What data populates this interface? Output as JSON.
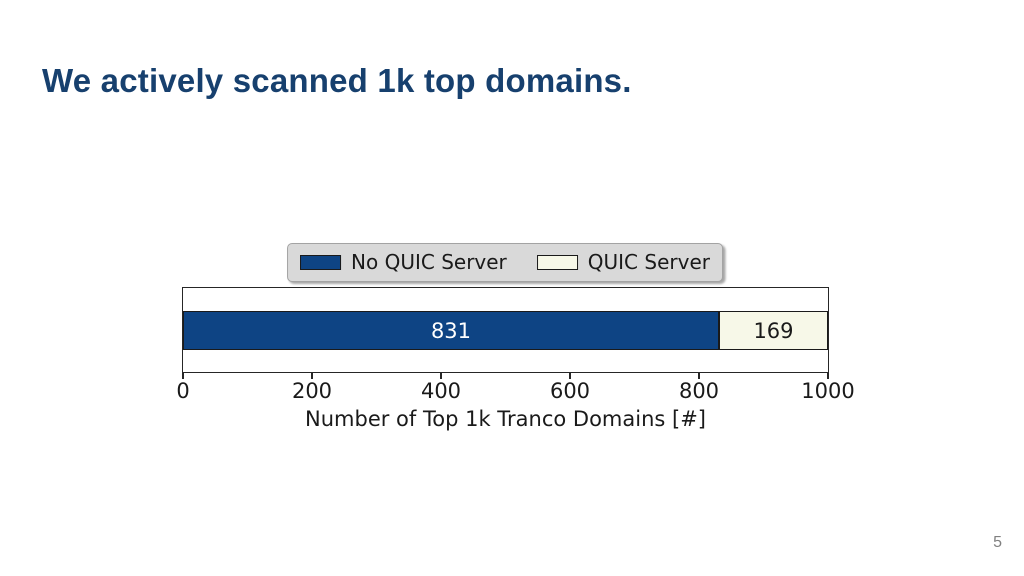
{
  "page": {
    "title": "We actively scanned 1k top domains.",
    "title_color": "#17406e",
    "page_number": "5",
    "background_color": "#ffffff"
  },
  "chart_data": {
    "type": "bar",
    "orientation": "horizontal",
    "stacked": true,
    "categories": [
      "Top 1k Tranco Domains"
    ],
    "series": [
      {
        "name": "No QUIC Server",
        "values": [
          831
        ],
        "color": "#0e4484",
        "label_color": "#ffffff"
      },
      {
        "name": "QUIC Server",
        "values": [
          169
        ],
        "color": "#f7f8e8",
        "label_color": "#1a1a1a"
      }
    ],
    "bar_labels": [
      "831",
      "169"
    ],
    "title": "",
    "xlabel": "Number of Top 1k Tranco Domains [#]",
    "ylabel": "",
    "xlim": [
      0,
      1000
    ],
    "xticks": [
      0,
      200,
      400,
      600,
      800,
      1000
    ],
    "tick_labels": [
      "0",
      "200",
      "400",
      "600",
      "800",
      "1000"
    ],
    "grid": false,
    "legend": {
      "position": "upper center, above axes",
      "background_color": "#d9d9d9",
      "edge_color": "#1a1a1a",
      "entries": [
        "No QUIC Server",
        "QUIC Server"
      ]
    },
    "frame_color": "#262626"
  }
}
